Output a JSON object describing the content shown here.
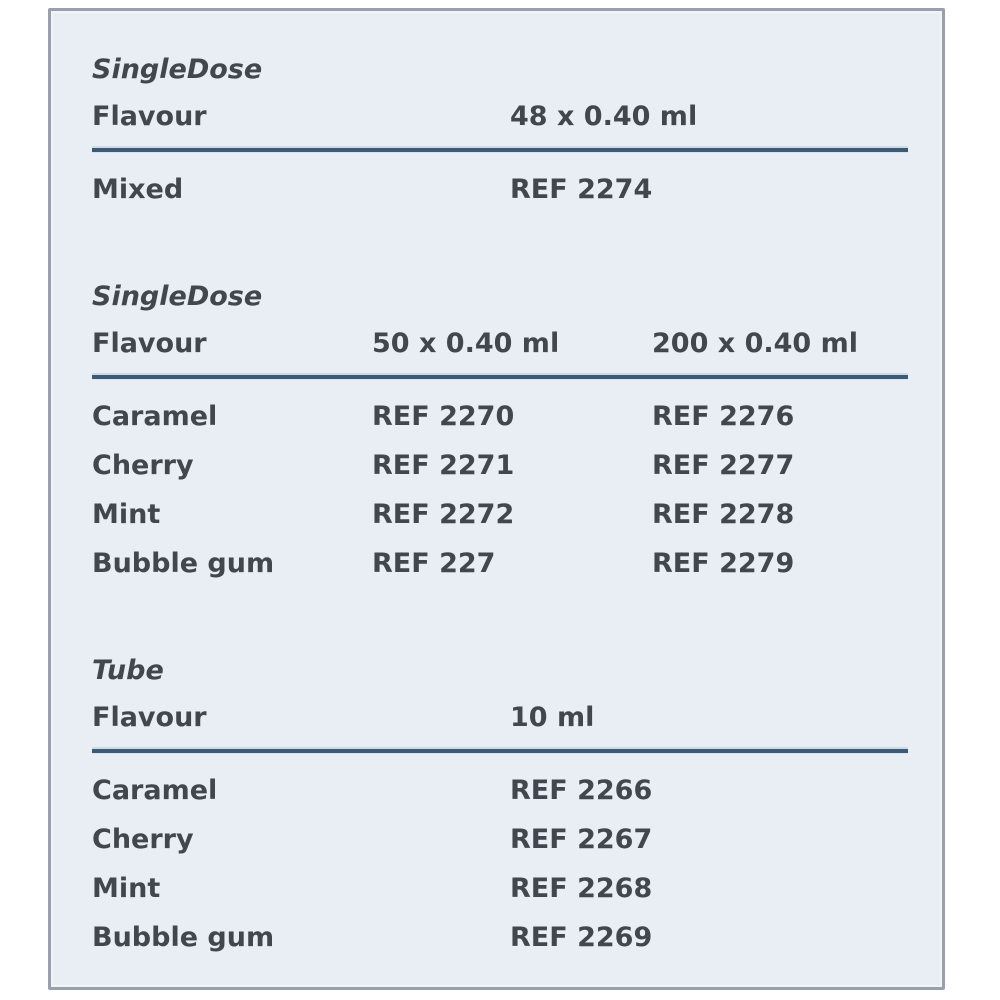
{
  "page": {
    "background": "#ffffff",
    "panel_background": "#e9edf4",
    "panel_border_color": "#99a0ab",
    "rule_color": "#3d5973",
    "text_color": "#42464d"
  },
  "sections": [
    {
      "title": "SingleDose",
      "headers": [
        "Flavour",
        "48 x 0.40 ml"
      ],
      "rows": [
        [
          "Mixed",
          "REF 2274"
        ]
      ]
    },
    {
      "title": "SingleDose",
      "headers": [
        "Flavour",
        "50 x 0.40 ml",
        "200 x 0.40 ml"
      ],
      "rows": [
        [
          "Caramel",
          "REF 2270",
          "REF 2276"
        ],
        [
          "Cherry",
          "REF 2271",
          "REF 2277"
        ],
        [
          "Mint",
          "REF 2272",
          "REF 2278"
        ],
        [
          "Bubble gum",
          "REF 227",
          "REF 2279"
        ]
      ]
    },
    {
      "title": "Tube",
      "headers": [
        "Flavour",
        "10 ml"
      ],
      "rows": [
        [
          "Caramel",
          "REF 2266"
        ],
        [
          "Cherry",
          "REF 2267"
        ],
        [
          "Mint",
          "REF 2268"
        ],
        [
          "Bubble gum",
          "REF 2269"
        ]
      ]
    }
  ]
}
